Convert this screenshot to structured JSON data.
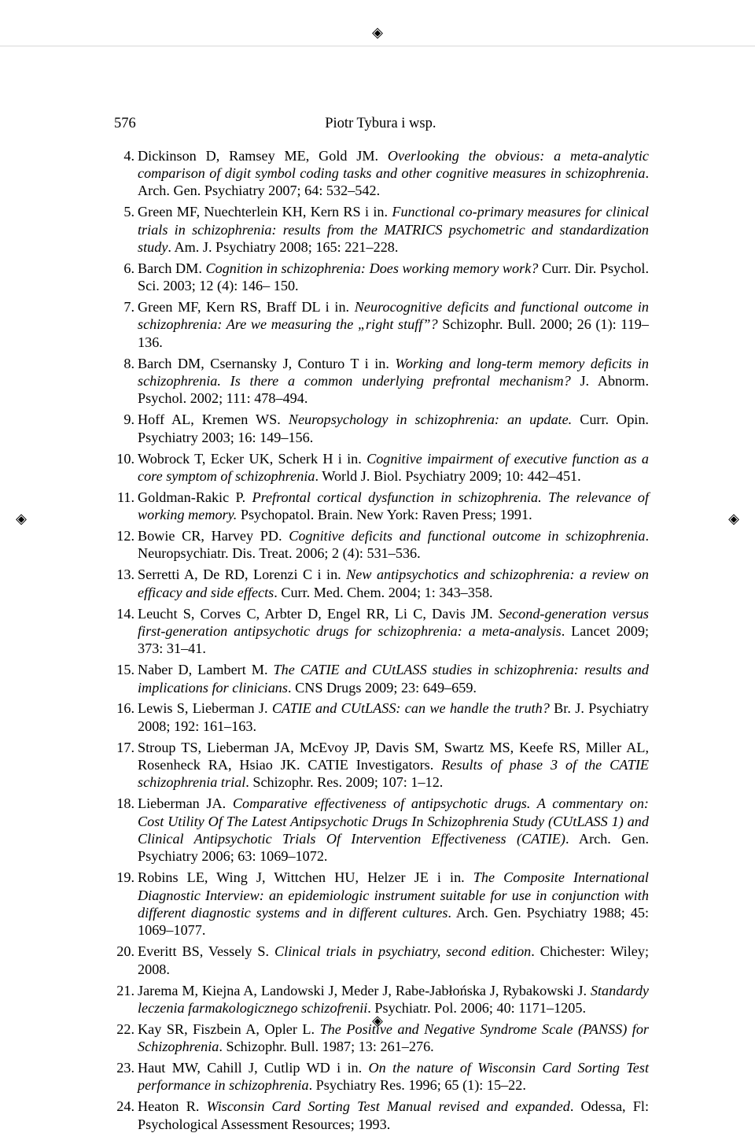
{
  "page_number": "576",
  "running_head": "Piotr Tybura i wsp.",
  "start_index": 4,
  "references": [
    {
      "n": "4.",
      "authors": "Dickinson D, Ramsey ME, Gold JM. ",
      "title": "Overlooking the obvious: a meta-analytic comparison of digit symbol coding tasks and other cognitive measures in schizophrenia",
      "tail": ". Arch. Gen. Psychiatry 2007; 64: 532–542."
    },
    {
      "n": "5.",
      "authors": "Green MF, Nuechterlein KH, Kern RS i in. ",
      "title": "Functional co-primary measures for clinical trials in schizophrenia: results from the MATRICS psychometric and standardization study",
      "tail": ". Am. J. Psychiatry 2008; 165: 221–228."
    },
    {
      "n": "6.",
      "authors": "Barch DM. ",
      "title": "Cognition in schizophrenia: Does working memory work?",
      "tail": " Curr. Dir. Psychol. Sci. 2003; 12 (4): 146– 150."
    },
    {
      "n": "7.",
      "authors": "Green MF, Kern RS, Braff DL i in. ",
      "title": "Neurocognitive deficits and functional outcome in schizophrenia: Are we measuring the „right stuff”?",
      "tail": " Schizophr. Bull. 2000; 26 (1): 119–136."
    },
    {
      "n": "8.",
      "authors": "Barch DM, Csernansky J, Conturo T i in. ",
      "title": "Working and long-term memory deficits in schizophrenia. Is there a common underlying prefrontal mechanism?",
      "tail": " J. Abnorm. Psychol. 2002; 111: 478–494."
    },
    {
      "n": "9.",
      "authors": "Hoff AL, Kremen WS. ",
      "title": "Neuropsychology in schizophrenia: an update.",
      "tail": " Curr. Opin. Psychiatry 2003; 16: 149–156."
    },
    {
      "n": "10.",
      "authors": "Wobrock T, Ecker UK, Scherk H i in. ",
      "title": "Cognitive impairment of executive function as a core symptom of schizophrenia",
      "tail": ". World J. Biol. Psychiatry 2009; 10: 442–451."
    },
    {
      "n": "11.",
      "authors": "Goldman-Rakic P. ",
      "title": "Prefrontal cortical dysfunction in schizophrenia. The relevance of working memory.",
      "tail": " Psychopatol. Brain. New York: Raven Press; 1991."
    },
    {
      "n": "12.",
      "authors": "Bowie CR, Harvey PD. ",
      "title": "Cognitive deficits and functional outcome in schizophrenia",
      "tail": ". Neuropsychiatr. Dis. Treat. 2006; 2 (4): 531–536."
    },
    {
      "n": "13.",
      "authors": "Serretti A, De RD, Lorenzi C i in. ",
      "title": "New antipsychotics and schizophrenia: a review on efficacy and side effects",
      "tail": ". Curr. Med. Chem. 2004; 1: 343–358."
    },
    {
      "n": "14.",
      "authors": "Leucht S, Corves C, Arbter D, Engel RR, Li C, Davis JM. ",
      "title": "Second-generation versus first-generation antipsychotic drugs for schizophrenia: a meta-analysis",
      "tail": ". Lancet 2009; 373: 31–41."
    },
    {
      "n": "15.",
      "authors": "Naber D, Lambert M. ",
      "title": "The CATIE and CUtLASS studies in schizophrenia: results and implications for clinicians",
      "tail": ". CNS Drugs 2009; 23: 649–659."
    },
    {
      "n": "16.",
      "authors": "Lewis S, Lieberman J. ",
      "title": "CATIE and CUtLASS: can we handle the truth?",
      "tail": " Br. J. Psychiatry 2008; 192: 161–163."
    },
    {
      "n": "17.",
      "authors": "Stroup TS, Lieberman JA, McEvoy JP, Davis SM, Swartz MS, Keefe RS, Miller AL, Rosenheck RA, Hsiao JK. CATIE Investigators. ",
      "title": "Results of phase 3 of the CATIE schizophrenia trial",
      "tail": ". Schizophr. Res. 2009; 107: 1–12."
    },
    {
      "n": "18.",
      "authors": "Lieberman JA. ",
      "title": "Comparative effectiveness of antipsychotic drugs. A commentary on: Cost Utility Of The Latest Antipsychotic Drugs In Schizophrenia Study (CUtLASS 1) and Clinical Antipsychotic Trials Of Intervention Effectiveness (CATIE)",
      "tail": ". Arch. Gen. Psychiatry 2006; 63: 1069–1072."
    },
    {
      "n": "19.",
      "authors": "Robins LE, Wing J, Wittchen HU, Helzer JE i in. ",
      "title": "The Composite International Diagnostic Interview: an epidemiologic instrument suitable for use in conjunction with different diagnostic systems and in different cultures",
      "tail": ". Arch. Gen. Psychiatry 1988; 45: 1069–1077."
    },
    {
      "n": "20.",
      "authors": "Everitt BS, Vessely S. ",
      "title": "Clinical trials in psychiatry, second edition",
      "tail": ". Chichester: Wiley; 2008."
    },
    {
      "n": "21.",
      "authors": "Jarema M, Kiejna A, Landowski J, Meder J, Rabe-Jabłońska J, Rybakowski J. ",
      "title": "Standardy leczenia farmakologicznego schizofrenii",
      "tail": ". Psychiatr. Pol. 2006; 40: 1171–1205."
    },
    {
      "n": "22.",
      "authors": "Kay SR, Fiszbein A, Opler L. ",
      "title": "The Positive and Negative Syndrome Scale (PANSS) for Schizophrenia",
      "tail": ". Schizophr. Bull. 1987; 13: 261–276."
    },
    {
      "n": "23.",
      "authors": "Haut MW, Cahill J, Cutlip WD i in. ",
      "title": "On the nature of Wisconsin Card Sorting Test performance in schizophrenia",
      "tail": ". Psychiatry Res. 1996; 65 (1): 15–22."
    },
    {
      "n": "24.",
      "authors": "Heaton R. ",
      "title": "Wisconsin Card Sorting Test Manual revised and expanded",
      "tail": ". Odessa, Fl: Psychological Assessment Resources; 1993."
    }
  ]
}
